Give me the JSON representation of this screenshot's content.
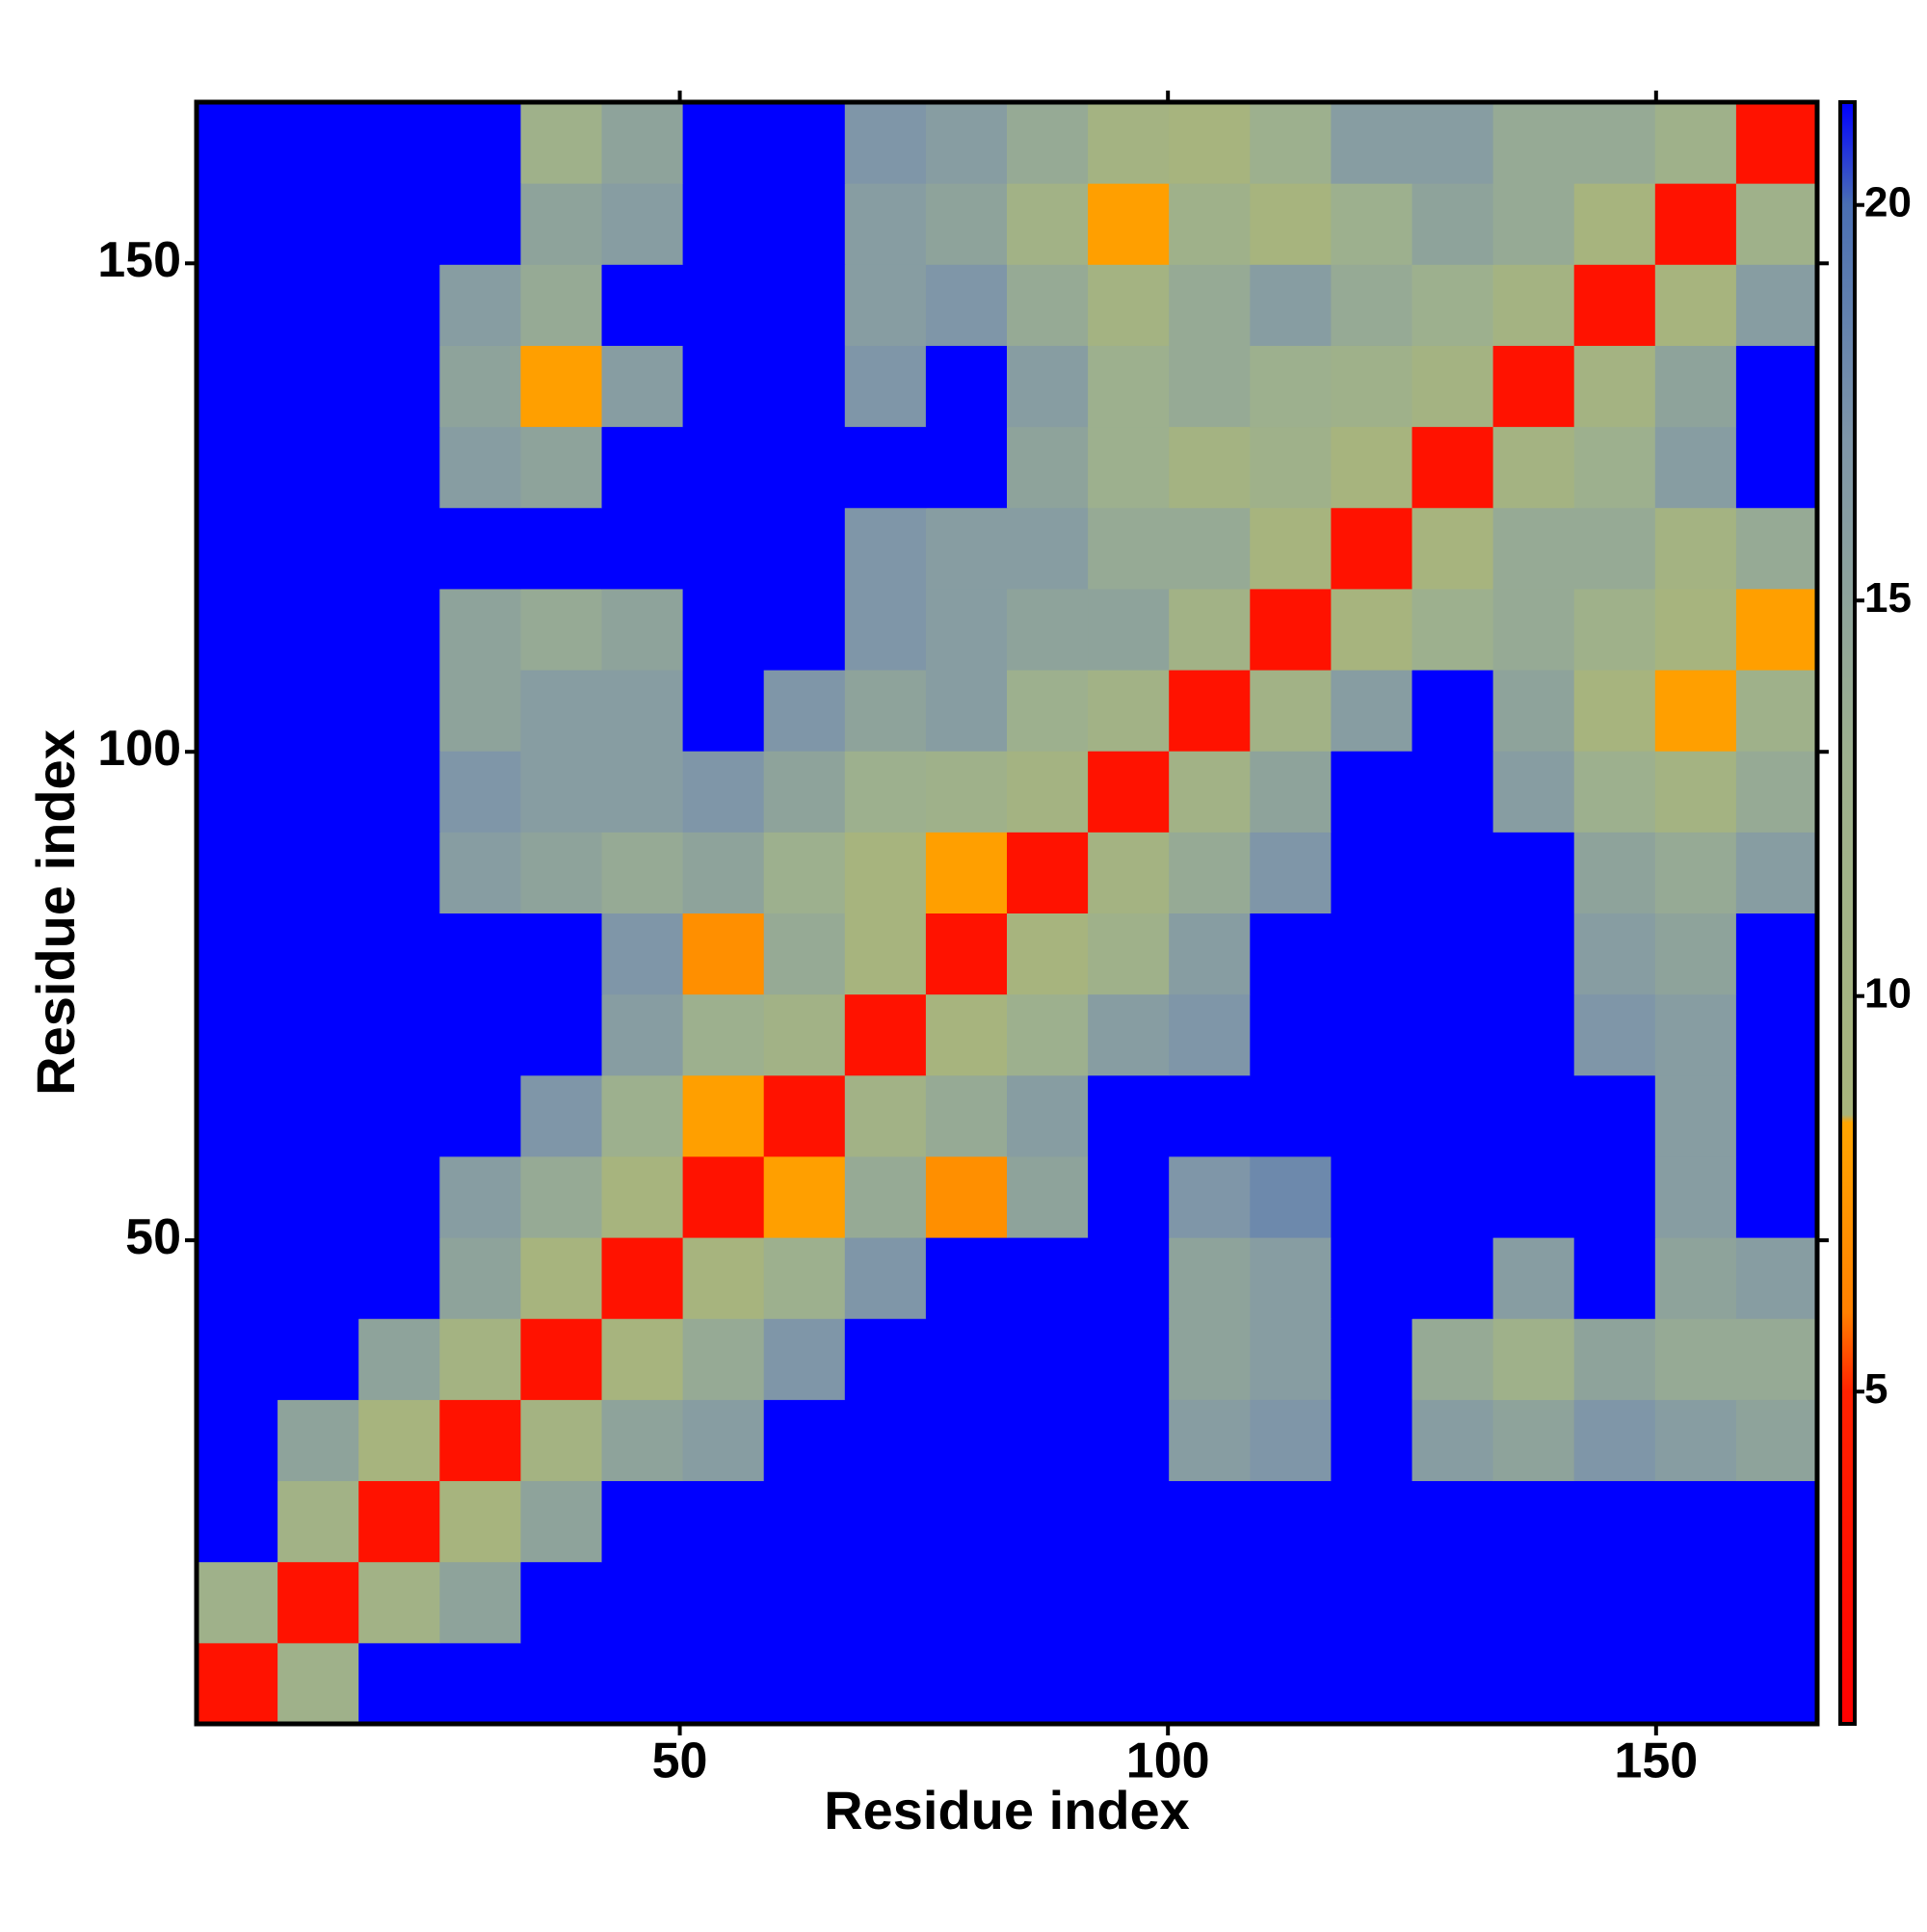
{
  "chart_data": {
    "type": "heatmap",
    "xlabel": "Residue index",
    "ylabel": "Residue index",
    "xlim": [
      0.5,
      166.5
    ],
    "ylim": [
      0.5,
      166.5
    ],
    "xticks": [
      50,
      100,
      150
    ],
    "yticks": [
      50,
      100,
      150
    ],
    "xbins": [
      0.5,
      8.8,
      17.1,
      25.4,
      33.7,
      42,
      50.3,
      58.6,
      66.9,
      75.2,
      83.5,
      91.8,
      100.1,
      108.4,
      116.7,
      125,
      133.3,
      141.6,
      149.9,
      158.2,
      166.5
    ],
    "ybins": [
      0.5,
      8.8,
      17.1,
      25.4,
      33.7,
      42,
      50.3,
      58.6,
      66.9,
      75.2,
      83.5,
      91.8,
      100.1,
      108.4,
      116.7,
      125,
      133.3,
      141.6,
      149.9,
      158.2,
      166.5
    ],
    "zlim": [
      0.8,
      21.3
    ],
    "zticks": [
      5,
      10,
      15,
      20
    ],
    "colorscale": [
      [
        0.8,
        "#ff0000"
      ],
      [
        5,
        "#ff2200"
      ],
      [
        6,
        "#ff8000"
      ],
      [
        8.4,
        "#ffa500"
      ],
      [
        8.5,
        "#a8b57c"
      ],
      [
        13,
        "#9db08e"
      ],
      [
        17,
        "#7f96a8"
      ],
      [
        20,
        "#4a6fb3"
      ],
      [
        21.3,
        "#0000ff"
      ]
    ],
    "z": [
      [
        3,
        12,
        25,
        25,
        25,
        25,
        25,
        25,
        25,
        25,
        25,
        25,
        25,
        25,
        25,
        25,
        25,
        25,
        25,
        25
      ],
      [
        12,
        3,
        11,
        15,
        25,
        25,
        25,
        25,
        25,
        25,
        25,
        25,
        25,
        25,
        25,
        25,
        25,
        25,
        25,
        25
      ],
      [
        25,
        11,
        3,
        9,
        15,
        25,
        25,
        25,
        25,
        25,
        25,
        25,
        25,
        25,
        25,
        25,
        25,
        25,
        25,
        25
      ],
      [
        25,
        15,
        9,
        3,
        10,
        15,
        16,
        25,
        25,
        25,
        25,
        25,
        16,
        17,
        25,
        16,
        15,
        17,
        16,
        15
      ],
      [
        25,
        25,
        15,
        10,
        3,
        9,
        14,
        17,
        25,
        25,
        25,
        25,
        15,
        16,
        25,
        14,
        12,
        15,
        14,
        14
      ],
      [
        25,
        25,
        25,
        15,
        9,
        3,
        9,
        13,
        17,
        25,
        25,
        25,
        15,
        16,
        25,
        25,
        16,
        25,
        15,
        16
      ],
      [
        25,
        25,
        25,
        16,
        14,
        9,
        3,
        8,
        14,
        7,
        15,
        25,
        17,
        18,
        25,
        25,
        25,
        25,
        16,
        25
      ],
      [
        25,
        25,
        25,
        25,
        17,
        13,
        8,
        3,
        11,
        14,
        16,
        25,
        25,
        25,
        25,
        25,
        25,
        25,
        16,
        25
      ],
      [
        25,
        25,
        25,
        25,
        25,
        16,
        13,
        11,
        3,
        9,
        13,
        16,
        17,
        25,
        25,
        25,
        25,
        17,
        16,
        25
      ],
      [
        25,
        25,
        25,
        25,
        25,
        17,
        7,
        14,
        9,
        3,
        9,
        12,
        16,
        25,
        25,
        25,
        25,
        16,
        15,
        25
      ],
      [
        25,
        25,
        25,
        16,
        15,
        14,
        15,
        13,
        9,
        8,
        3,
        10,
        14,
        17,
        25,
        25,
        25,
        15,
        14,
        16
      ],
      [
        25,
        25,
        25,
        17,
        16,
        16,
        17,
        15,
        13,
        12,
        10,
        3,
        11,
        15,
        25,
        25,
        16,
        13,
        10,
        14
      ],
      [
        25,
        25,
        25,
        15,
        16,
        16,
        25,
        17,
        15,
        16,
        13,
        11,
        3,
        11,
        16,
        25,
        15,
        9,
        8,
        12
      ],
      [
        25,
        25,
        25,
        15,
        14,
        15,
        25,
        25,
        17,
        16,
        15,
        15,
        11,
        3,
        9,
        13,
        14,
        12,
        9,
        8
      ],
      [
        25,
        25,
        25,
        25,
        25,
        25,
        25,
        25,
        17,
        16,
        16,
        14,
        14,
        9,
        3,
        9,
        14,
        14,
        10,
        14
      ],
      [
        25,
        25,
        25,
        16,
        15,
        25,
        25,
        25,
        25,
        25,
        15,
        13,
        10,
        12,
        9,
        3,
        10,
        13,
        16,
        25
      ],
      [
        25,
        25,
        25,
        15,
        8,
        16,
        25,
        25,
        17,
        25,
        16,
        13,
        14,
        13,
        12,
        10,
        3,
        10,
        15,
        25
      ],
      [
        25,
        25,
        25,
        16,
        14,
        25,
        25,
        25,
        16,
        17,
        14,
        10,
        14,
        16,
        14,
        13,
        10,
        3,
        9,
        16
      ],
      [
        25,
        25,
        25,
        25,
        15,
        16,
        25,
        25,
        16,
        15,
        11,
        8,
        12,
        9,
        13,
        15,
        14,
        9,
        3,
        12
      ],
      [
        25,
        25,
        25,
        25,
        12,
        15,
        25,
        25,
        17,
        16,
        14,
        10,
        9,
        13,
        16,
        16,
        14,
        14,
        12,
        3
      ]
    ]
  }
}
